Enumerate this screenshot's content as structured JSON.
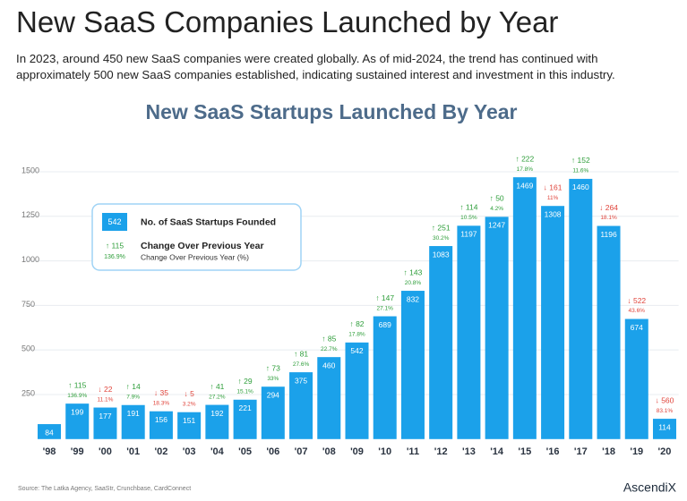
{
  "header": {
    "title": "New SaaS Companies Launched by Year",
    "text": "In 2023, around 450 new SaaS companies were created globally. As of mid-2024, the trend has continued with approximately 500 new SaaS companies established, indicating sustained interest and investment in this industry."
  },
  "chart_data": {
    "type": "bar",
    "title": "New SaaS Startups Launched By Year",
    "categories": [
      "'98",
      "'99",
      "'00",
      "'01",
      "'02",
      "'03",
      "'04",
      "'05",
      "'06",
      "'07",
      "'08",
      "'09",
      "'10",
      "'11",
      "'12",
      "'13",
      "'14",
      "'15",
      "'16",
      "'17",
      "'18",
      "'19",
      "'20"
    ],
    "values": [
      84,
      199,
      177,
      191,
      156,
      151,
      192,
      221,
      294,
      375,
      460,
      542,
      689,
      832,
      1083,
      1197,
      1247,
      1469,
      1308,
      1460,
      1196,
      674,
      114
    ],
    "color": "#1ba1ea",
    "changes": {
      "values": [
        null,
        115,
        -22,
        14,
        -35,
        -5,
        41,
        29,
        73,
        81,
        85,
        82,
        147,
        143,
        251,
        114,
        50,
        222,
        -161,
        152,
        -264,
        -522,
        -560
      ],
      "value_labels": [
        null,
        "↑ 115",
        "↓ 22",
        "↑ 14",
        "↓ 35",
        "↓ 5",
        "↑ 41",
        "↑ 29",
        "↑ 73",
        "↑ 81",
        "↑ 85",
        "↑ 82",
        "↑ 147",
        "↑ 143",
        "↑ 251",
        "↑ 114",
        "↑ 50",
        "↑ 222",
        "↓ 161",
        "↑ 152",
        "↓ 264",
        "↓ 522",
        "↓ 560"
      ],
      "up_color": "#2e9e3a",
      "down_color": "#e0453c"
    },
    "change_pct": {
      "values": [
        null,
        136.9,
        11.1,
        7.9,
        18.3,
        3.2,
        27.2,
        15.1,
        33,
        27.6,
        22.7,
        17.8,
        27.1,
        20.8,
        30.2,
        10.5,
        4.2,
        17.8,
        11,
        11.6,
        18.1,
        43.6,
        83.1
      ],
      "value_labels": [
        null,
        "136.9%",
        "11.1%",
        "7.9%",
        "18.3%",
        "3.2%",
        "27.2%",
        "15.1%",
        "33%",
        "27.6%",
        "22.7%",
        "17.8%",
        "27.1%",
        "20.8%",
        "30.2%",
        "10.5%",
        "4.2%",
        "17.8%",
        "11%",
        "11.6%",
        "18.1%",
        "43.6%",
        "83.1%"
      ]
    },
    "ylim": [
      0,
      1550
    ],
    "yticks": [
      250,
      500,
      750,
      1000,
      1250,
      1500
    ],
    "grid": true,
    "legend": {
      "value_sample": "542",
      "label": "No. of SaaS Startups Founded",
      "change_sample": "↑ 115",
      "pct_sample": "136.9%",
      "change_label": "Change Over Previous Year",
      "pct_label": "Change Over Previous Year (%)"
    },
    "source": "Source: The Latka Agency, SaaStr, Crunchbase, CardConnect"
  },
  "footer": {
    "logo": "AscendiX"
  }
}
